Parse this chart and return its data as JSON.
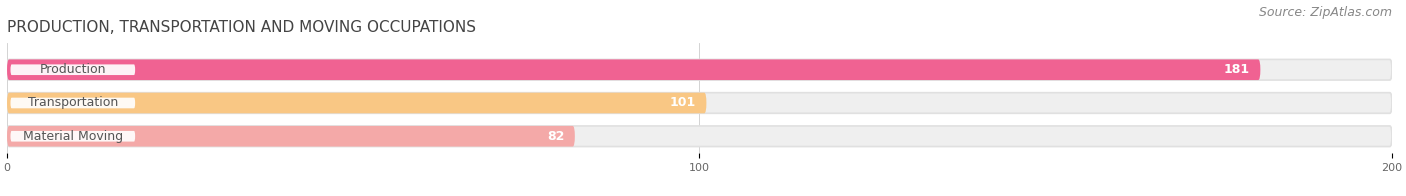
{
  "title": "PRODUCTION, TRANSPORTATION AND MOVING OCCUPATIONS",
  "source": "Source: ZipAtlas.com",
  "categories": [
    "Production",
    "Transportation",
    "Material Moving"
  ],
  "values": [
    181,
    101,
    82
  ],
  "bar_colors": [
    "#f06292",
    "#f9c784",
    "#f4a9a8"
  ],
  "bar_bg_color": "#efefef",
  "bar_border_color": "#e0e0e0",
  "xlim_data": [
    0,
    200
  ],
  "xticks": [
    0,
    100,
    200
  ],
  "title_fontsize": 11,
  "source_fontsize": 9,
  "label_fontsize": 9,
  "value_fontsize": 9,
  "figsize": [
    14.06,
    1.96
  ],
  "dpi": 100
}
